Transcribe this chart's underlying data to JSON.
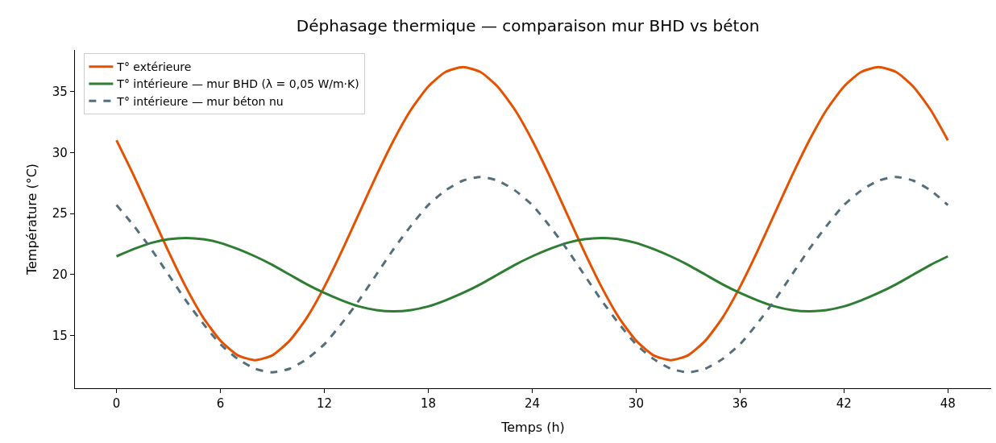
{
  "chart_data": {
    "type": "line",
    "title": "Déphasage thermique — comparaison mur BHD vs béton",
    "xlabel": "Temps (h)",
    "ylabel": "Température (°C)",
    "x": [
      0,
      1,
      2,
      3,
      4,
      5,
      6,
      7,
      8,
      9,
      10,
      11,
      12,
      13,
      14,
      15,
      16,
      17,
      18,
      19,
      20,
      21,
      22,
      23,
      24,
      25,
      26,
      27,
      28,
      29,
      30,
      31,
      32,
      33,
      34,
      35,
      36,
      37,
      38,
      39,
      40,
      41,
      42,
      43,
      44,
      45,
      46,
      47,
      48
    ],
    "series": [
      {
        "name": "T° extérieure",
        "color": "#e65100",
        "line_style": "solid",
        "values": [
          31,
          28.1,
          25,
          21.9,
          19,
          16.5,
          14.6,
          13.4,
          13,
          13.4,
          14.6,
          16.5,
          19,
          21.9,
          25,
          28.1,
          31,
          33.5,
          35.4,
          36.6,
          37,
          36.6,
          35.4,
          33.5,
          31,
          28.1,
          25,
          21.9,
          19,
          16.5,
          14.6,
          13.4,
          13,
          13.4,
          14.6,
          16.5,
          19,
          21.9,
          25,
          28.1,
          31,
          33.5,
          35.4,
          36.6,
          37,
          36.6,
          35.4,
          33.5,
          31
        ]
      },
      {
        "name": "T° intérieure — mur BHD (λ = 0,05 W/m·K)",
        "color": "#2e7d32",
        "line_style": "solid",
        "values": [
          21.5,
          22.1,
          22.6,
          22.9,
          23,
          22.9,
          22.6,
          22.1,
          21.5,
          20.8,
          20,
          19.2,
          18.5,
          17.9,
          17.4,
          17.1,
          17,
          17.1,
          17.4,
          17.9,
          18.5,
          19.2,
          20,
          20.8,
          21.5,
          22.1,
          22.6,
          22.9,
          23,
          22.9,
          22.6,
          22.1,
          21.5,
          20.8,
          20,
          19.2,
          18.5,
          17.9,
          17.4,
          17.1,
          17,
          17.1,
          17.4,
          17.9,
          18.5,
          19.2,
          20,
          20.8,
          21.5
        ]
      },
      {
        "name": "T° intérieure — mur béton nu",
        "color": "#546e7a",
        "line_style": "dashed",
        "values": [
          25.7,
          24,
          22.1,
          20,
          17.9,
          16,
          14.3,
          13.1,
          12.3,
          12,
          12.3,
          13.1,
          14.3,
          16,
          17.9,
          20,
          22.1,
          24,
          25.7,
          26.9,
          27.7,
          28,
          27.7,
          26.9,
          25.7,
          24,
          22.1,
          20,
          17.9,
          16,
          14.3,
          13.1,
          12.3,
          12,
          12.3,
          13.1,
          14.3,
          16,
          17.9,
          20,
          22.1,
          24,
          25.7,
          26.9,
          27.7,
          28,
          27.7,
          26.9,
          25.7
        ]
      }
    ],
    "xlim": [
      -2.4,
      50.5
    ],
    "xticks": [
      0,
      6,
      12,
      18,
      24,
      30,
      36,
      42,
      48
    ],
    "ylim": [
      10.7,
      38.4
    ],
    "yticks": [
      15,
      20,
      25,
      30,
      35
    ],
    "legend": "top left",
    "marker": "none"
  }
}
